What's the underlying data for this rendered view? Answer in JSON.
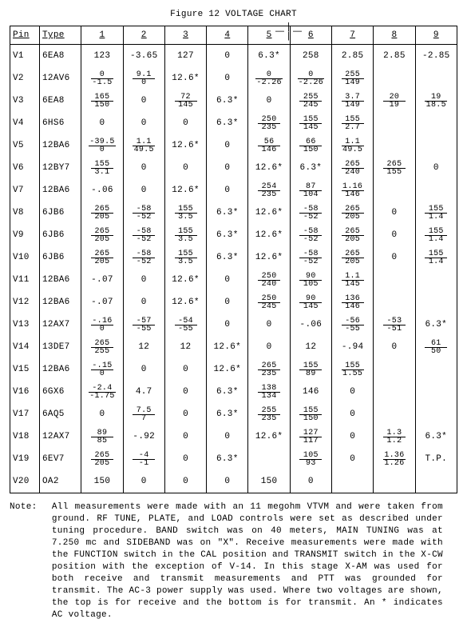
{
  "title": "Figure 12 VOLTAGE CHART",
  "columns": [
    "Pin",
    "Type",
    "1",
    "2",
    "3",
    "4",
    "5",
    "6",
    "7",
    "8",
    "9"
  ],
  "rows": [
    {
      "pin": "V1",
      "type": "6EA8",
      "c": [
        "123",
        "-3.65",
        "127",
        "0",
        "6.3*",
        "258",
        "2.85",
        "2.85",
        "-2.85"
      ]
    },
    {
      "pin": "V2",
      "type": "12AV6",
      "c": [
        {
          "t": "0",
          "b": "-1.5"
        },
        {
          "t": "9.1",
          "b": "0"
        },
        "12.6*",
        "0",
        {
          "t": "0",
          "b": "-2.26"
        },
        {
          "t": "0",
          "b": "-2.26"
        },
        {
          "t": "255",
          "b": "149"
        },
        "",
        ""
      ]
    },
    {
      "pin": "V3",
      "type": "6EA8",
      "c": [
        {
          "t": "165",
          "b": "150"
        },
        "0",
        {
          "t": "72",
          "b": "145"
        },
        "6.3*",
        "0",
        {
          "t": "255",
          "b": "245"
        },
        {
          "t": "3.7",
          "b": "149"
        },
        {
          "t": "20",
          "b": "19"
        },
        {
          "t": "19",
          "b": "18.5"
        }
      ]
    },
    {
      "pin": "V4",
      "type": "6HS6",
      "c": [
        "0",
        "0",
        "0",
        "6.3*",
        {
          "t": "250",
          "b": "235"
        },
        {
          "t": "155",
          "b": "145"
        },
        {
          "t": "155",
          "b": "2.7"
        },
        "",
        ""
      ]
    },
    {
      "pin": "V5",
      "type": "12BA6",
      "c": [
        {
          "t": "-39.5",
          "b": "0"
        },
        {
          "t": "1.1",
          "b": "49.5"
        },
        "12.6*",
        "0",
        {
          "t": "56",
          "b": "146"
        },
        {
          "t": "66",
          "b": "150"
        },
        {
          "t": "1.1",
          "b": "49.5"
        },
        "",
        ""
      ]
    },
    {
      "pin": "V6",
      "type": "12BY7",
      "c": [
        {
          "t": "155",
          "b": "3.1"
        },
        "0",
        "0",
        "0",
        "12.6*",
        "6.3*",
        {
          "t": "265",
          "b": "240"
        },
        {
          "t": "265",
          "b": "155"
        },
        "0"
      ]
    },
    {
      "pin": "V7",
      "type": "12BA6",
      "c": [
        "-.06",
        "0",
        "12.6*",
        "0",
        {
          "t": "254",
          "b": "235"
        },
        {
          "t": "87",
          "b": "104"
        },
        {
          "t": "1.16",
          "b": "146"
        },
        "",
        ""
      ]
    },
    {
      "pin": "V8",
      "type": "6JB6",
      "c": [
        {
          "t": "265",
          "b": "205"
        },
        {
          "t": "-58",
          "b": "-52"
        },
        {
          "t": "155",
          "b": "3.5"
        },
        "6.3*",
        "12.6*",
        {
          "t": "-58",
          "b": "-52"
        },
        {
          "t": "265",
          "b": "205"
        },
        "0",
        {
          "t": "155",
          "b": "1.4"
        }
      ]
    },
    {
      "pin": "V9",
      "type": "6JB6",
      "c": [
        {
          "t": "265",
          "b": "205"
        },
        {
          "t": "-58",
          "b": "-52"
        },
        {
          "t": "155",
          "b": "3.5"
        },
        "6.3*",
        "12.6*",
        {
          "t": "-58",
          "b": "-52"
        },
        {
          "t": "265",
          "b": "205"
        },
        "0",
        {
          "t": "155",
          "b": "1.4"
        }
      ]
    },
    {
      "pin": "V10",
      "type": "6JB6",
      "c": [
        {
          "t": "265",
          "b": "205"
        },
        {
          "t": "-58",
          "b": "-52"
        },
        {
          "t": "155",
          "b": "3.5"
        },
        "6.3*",
        "12.6*",
        {
          "t": "-58",
          "b": "-52"
        },
        {
          "t": "265",
          "b": "205"
        },
        "0",
        {
          "t": "155",
          "b": "1.4"
        }
      ]
    },
    {
      "pin": "V11",
      "type": "12BA6",
      "c": [
        "-.07",
        "0",
        "12.6*",
        "0",
        {
          "t": "250",
          "b": "240"
        },
        {
          "t": "90",
          "b": "105"
        },
        {
          "t": "1.1",
          "b": "145"
        },
        "",
        ""
      ]
    },
    {
      "pin": "V12",
      "type": "12BA6",
      "c": [
        "-.07",
        "0",
        "12.6*",
        "0",
        {
          "t": "250",
          "b": "245"
        },
        {
          "t": "90",
          "b": "145"
        },
        {
          "t": "136",
          "b": "146"
        },
        "",
        ""
      ]
    },
    {
      "pin": "V13",
      "type": "12AX7",
      "c": [
        {
          "t": "-.16",
          "b": "0"
        },
        {
          "t": "-57",
          "b": "-55"
        },
        {
          "t": "-54",
          "b": "-55"
        },
        "0",
        "0",
        "-.06",
        {
          "t": "-56",
          "b": "-55"
        },
        {
          "t": "-53",
          "b": "-51"
        },
        "6.3*"
      ]
    },
    {
      "pin": "V14",
      "type": "13DE7",
      "c": [
        {
          "t": "265",
          "b": "255"
        },
        "12",
        "12",
        "12.6*",
        "0",
        "12",
        "-.94",
        "0",
        {
          "t": "61",
          "b": "50"
        }
      ]
    },
    {
      "pin": "V15",
      "type": "12BA6",
      "c": [
        {
          "t": "-.15",
          "b": "0"
        },
        "0",
        "0",
        "12.6*",
        {
          "t": "265",
          "b": "235"
        },
        {
          "t": "155",
          "b": "89"
        },
        {
          "t": "155",
          "b": "1.55"
        },
        "",
        ""
      ]
    },
    {
      "pin": "V16",
      "type": "6GX6",
      "c": [
        {
          "t": "-2.4",
          "b": "-1.75"
        },
        "4.7",
        "0",
        "6.3*",
        {
          "t": "138",
          "b": "134"
        },
        "146",
        "0",
        "",
        ""
      ]
    },
    {
      "pin": "V17",
      "type": "6AQ5",
      "c": [
        "0",
        {
          "t": "7.5",
          "b": "7"
        },
        "0",
        "6.3*",
        {
          "t": "255",
          "b": "235"
        },
        {
          "t": "155",
          "b": "150"
        },
        "0",
        "",
        ""
      ]
    },
    {
      "pin": "V18",
      "type": "12AX7",
      "c": [
        {
          "t": "89",
          "b": "85"
        },
        "-.92",
        "0",
        "0",
        "12.6*",
        {
          "t": "127",
          "b": "117"
        },
        "0",
        {
          "t": "1.3",
          "b": "1.2"
        },
        "6.3*"
      ]
    },
    {
      "pin": "V19",
      "type": "6EV7",
      "c": [
        {
          "t": "265",
          "b": "205"
        },
        {
          "t": "-4",
          "b": "-1"
        },
        "0",
        "6.3*",
        "",
        {
          "t": "105",
          "b": "93"
        },
        "0",
        {
          "t": "1.36",
          "b": "1.26"
        },
        "T.P."
      ]
    },
    {
      "pin": "V20",
      "type": "OA2",
      "c": [
        "150",
        "0",
        "0",
        "0",
        "150",
        "0",
        "",
        "",
        ""
      ]
    }
  ],
  "note_label": "Note:",
  "note_body": "All measurements were made with an 11 megohm VTVM and were taken from ground. RF TUNE, PLATE, and LOAD controls were set as described under tuning procedure. BAND switch was on 40 meters, MAIN TUNING was at 7.250 mc and SIDEBAND was on \"X\". Receive measurements were made with the FUNCTION switch in the CAL position and TRANSMIT switch in the X-CW position with the exception of V-14. In this stage X-AM was used for both receive and transmit measurements and PTT was grounded for transmit. The AC-3 power supply was used. Where two voltages are shown, the top is for receive and the bottom is for transmit. An * indicates AC voltage."
}
